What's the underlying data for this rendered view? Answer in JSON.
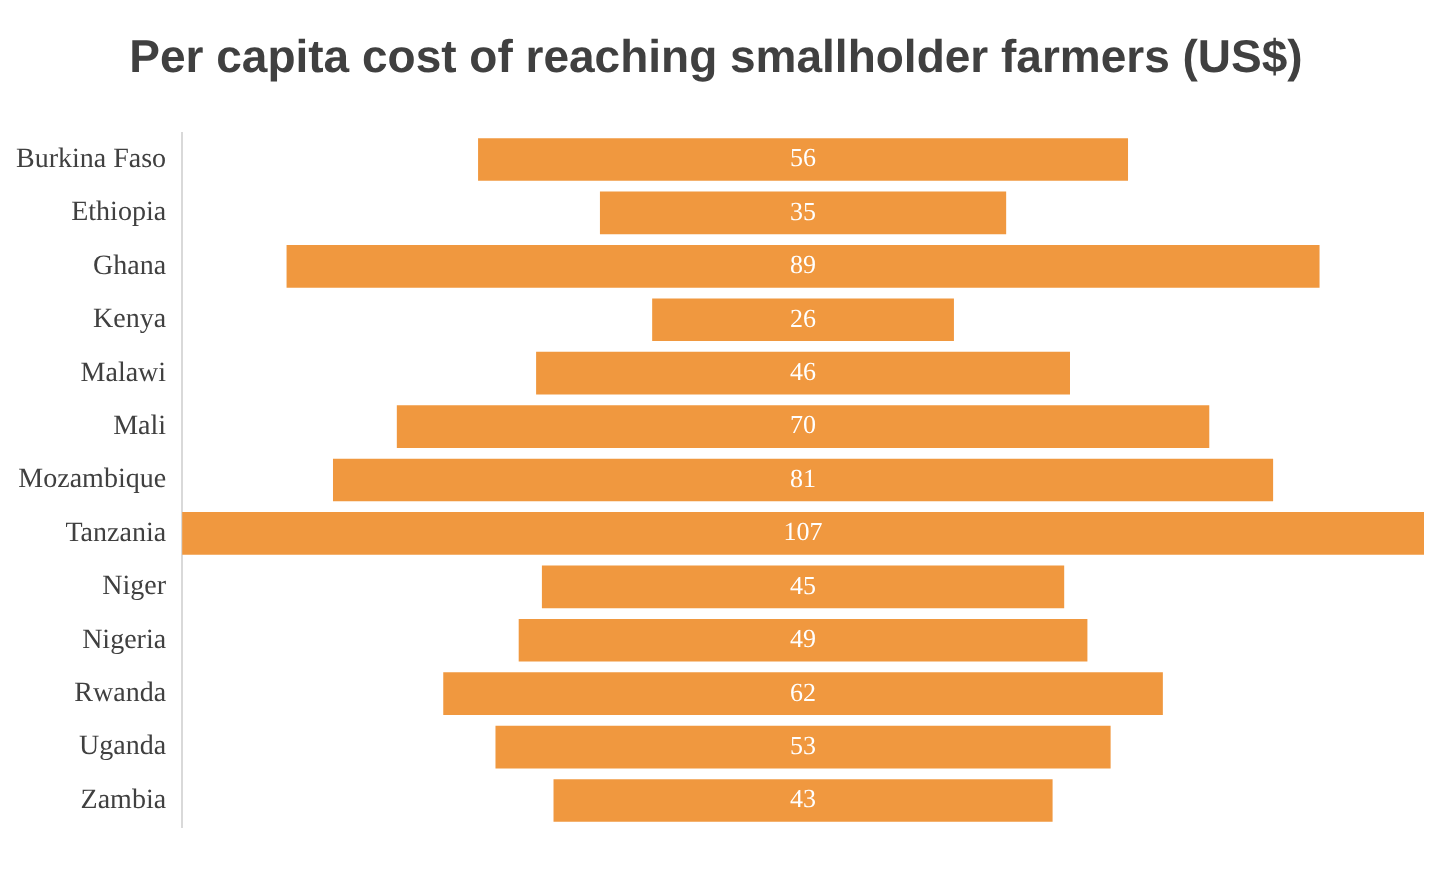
{
  "chart_data": {
    "type": "other",
    "title": "Per capita cost of reaching smallholder farmers (US$)",
    "categories": [
      "Burkina Faso",
      "Ethiopia",
      "Ghana",
      "Kenya",
      "Malawi",
      "Mali",
      "Mozambique",
      "Tanzania",
      "Niger",
      "Nigeria",
      "Rwanda",
      "Uganda",
      "Zambia"
    ],
    "values": [
      56,
      35,
      89,
      26,
      46,
      70,
      81,
      107,
      45,
      49,
      62,
      53,
      43
    ],
    "color": "#f0983f",
    "data_labels": true
  }
}
